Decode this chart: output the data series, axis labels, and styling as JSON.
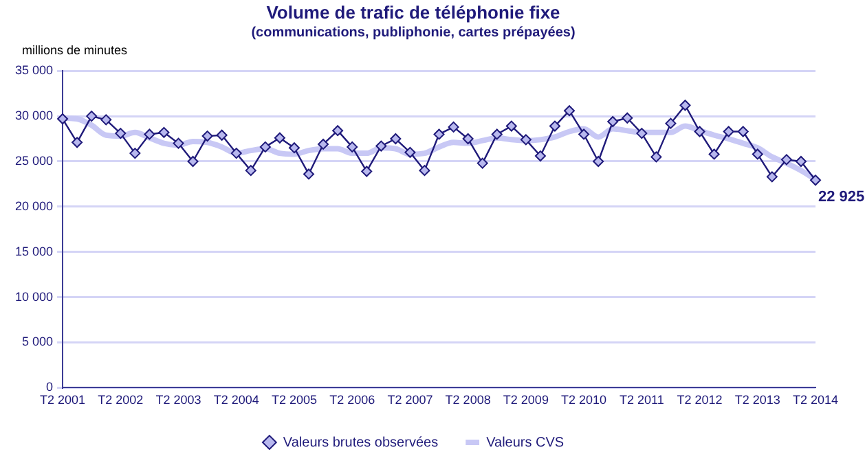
{
  "chart_data": {
    "type": "line",
    "title": "Volume de trafic de téléphonie fixe",
    "subtitle": "(communications, publiphonie, cartes prépayées)",
    "ylabel": "millions de minutes",
    "categories": [
      "T2 2001",
      null,
      null,
      null,
      "T2 2002",
      null,
      null,
      null,
      "T2 2003",
      null,
      null,
      null,
      "T2 2004",
      null,
      null,
      null,
      "T2 2005",
      null,
      null,
      null,
      "T2 2006",
      null,
      null,
      null,
      "T2 2007",
      null,
      null,
      null,
      "T2 2008",
      null,
      null,
      null,
      "T2 2009",
      null,
      null,
      null,
      "T2 2010",
      null,
      null,
      null,
      "T2 2011",
      null,
      null,
      null,
      "T2 2012",
      null,
      null,
      null,
      "T2 2013",
      null,
      null,
      null,
      "T2 2014"
    ],
    "series": [
      {
        "name": "Valeurs brutes observées",
        "color": "#1f1a7a",
        "marker": "diamond",
        "values": [
          29700,
          27100,
          30000,
          29600,
          28100,
          25900,
          28000,
          28200,
          27000,
          25000,
          27800,
          27900,
          25900,
          24000,
          26600,
          27600,
          26500,
          23600,
          26900,
          28400,
          26600,
          23900,
          26700,
          27500,
          26000,
          24000,
          28000,
          28800,
          27500,
          24800,
          28000,
          28900,
          27400,
          25600,
          28900,
          30600,
          28000,
          25000,
          29400,
          29800,
          28100,
          25500,
          29200,
          31200,
          28300,
          25800,
          28300,
          28300,
          25800,
          23300,
          25200,
          25000,
          22925
        ]
      },
      {
        "name": "Valeurs CVS",
        "color": "#c8c8f5",
        "marker": "none",
        "values": [
          29800,
          29700,
          29000,
          27900,
          27800,
          28200,
          27600,
          27000,
          26800,
          27200,
          27100,
          26600,
          25900,
          26200,
          26400,
          25900,
          25800,
          26200,
          26400,
          26400,
          25900,
          25900,
          26500,
          26400,
          25800,
          25900,
          26600,
          27100,
          27000,
          27300,
          27600,
          27400,
          27300,
          27400,
          27700,
          28300,
          28600,
          27700,
          28600,
          28400,
          28200,
          28200,
          28200,
          28900,
          28400,
          27900,
          27500,
          27000,
          26500,
          25500,
          24800,
          24000,
          23000
        ]
      }
    ],
    "ylim": [
      0,
      35000
    ],
    "yticks": [
      0,
      {
        "value": 5000,
        "label": "5 000"
      },
      {
        "value": 10000,
        "label": "10 000"
      },
      {
        "value": 15000,
        "label": "15 000"
      },
      {
        "value": 20000,
        "label": "20 000"
      },
      {
        "value": 25000,
        "label": "25 000"
      },
      {
        "value": 30000,
        "label": "30 000"
      },
      {
        "value": 35000,
        "label": "35 000"
      }
    ],
    "grid": "y",
    "legend": "bottom",
    "annotations": [
      {
        "text": "22 925",
        "x": "T2 2014",
        "y": 22925
      }
    ]
  }
}
